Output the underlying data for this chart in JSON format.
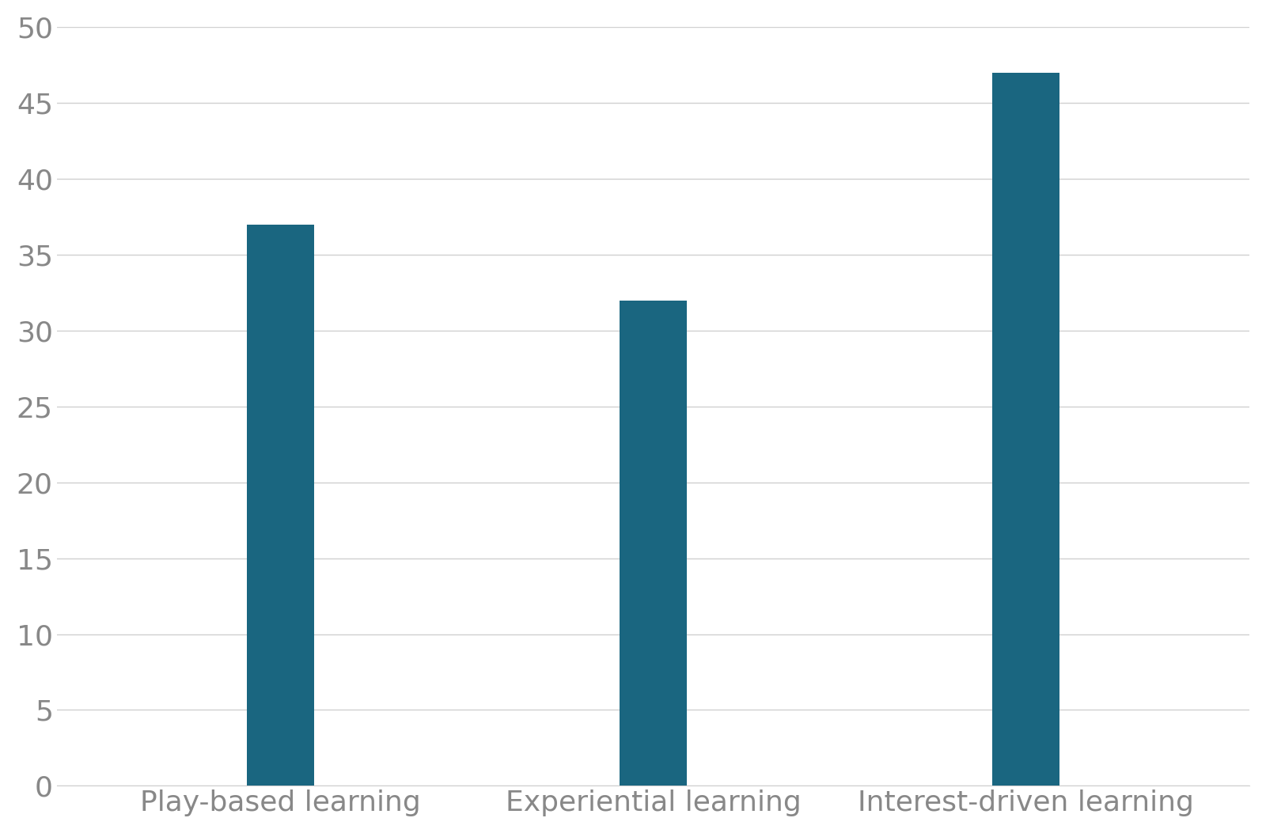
{
  "categories": [
    "Play-based learning",
    "Experiential learning",
    "Interest-driven learning"
  ],
  "values": [
    37,
    32,
    47
  ],
  "bar_color": "#1a6680",
  "background_color": "#ffffff",
  "ylim": [
    0,
    50
  ],
  "yticks": [
    0,
    5,
    10,
    15,
    20,
    25,
    30,
    35,
    40,
    45,
    50
  ],
  "bar_width": 0.18,
  "tick_fontsize": 26,
  "label_fontsize": 26,
  "grid_color": "#d0d0d0",
  "grid_linewidth": 1.0,
  "tick_color": "#888888",
  "label_color": "#888888"
}
